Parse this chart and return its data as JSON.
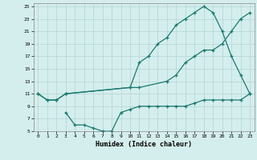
{
  "xlabel": "Humidex (Indice chaleur)",
  "bg_color": "#d4eeed",
  "grid_color": "#b8d8d8",
  "line_color": "#1a7a6e",
  "xlim": [
    -0.5,
    23.5
  ],
  "ylim": [
    5,
    25.5
  ],
  "xticks": [
    0,
    1,
    2,
    3,
    4,
    5,
    6,
    7,
    8,
    9,
    10,
    11,
    12,
    13,
    14,
    15,
    16,
    17,
    18,
    19,
    20,
    21,
    22,
    23
  ],
  "yticks": [
    5,
    7,
    9,
    11,
    13,
    15,
    17,
    19,
    21,
    23,
    25
  ],
  "line1_x": [
    0,
    1,
    2,
    3,
    10,
    11,
    12,
    13,
    14,
    15,
    16,
    17,
    18,
    19,
    20,
    21,
    22,
    23
  ],
  "line1_y": [
    11,
    10,
    10,
    11,
    12,
    16,
    17,
    19,
    20,
    22,
    23,
    24,
    25,
    24,
    21,
    17,
    14,
    11
  ],
  "line2_x": [
    0,
    1,
    2,
    3,
    10,
    11,
    14,
    15,
    16,
    17,
    18,
    19,
    20,
    21,
    22,
    23
  ],
  "line2_y": [
    11,
    10,
    10,
    11,
    12,
    12,
    13,
    14,
    16,
    17,
    18,
    18,
    19,
    21,
    23,
    24
  ],
  "line3_x": [
    3,
    4,
    5,
    6,
    7,
    8,
    9,
    10,
    11,
    12,
    13,
    14,
    15,
    16,
    17,
    18,
    19,
    20,
    21,
    22,
    23
  ],
  "line3_y": [
    8,
    6,
    6,
    5.5,
    5,
    5,
    8,
    8.5,
    9,
    9,
    9,
    9,
    9,
    9,
    9.5,
    10,
    10,
    10,
    10,
    10,
    11
  ]
}
